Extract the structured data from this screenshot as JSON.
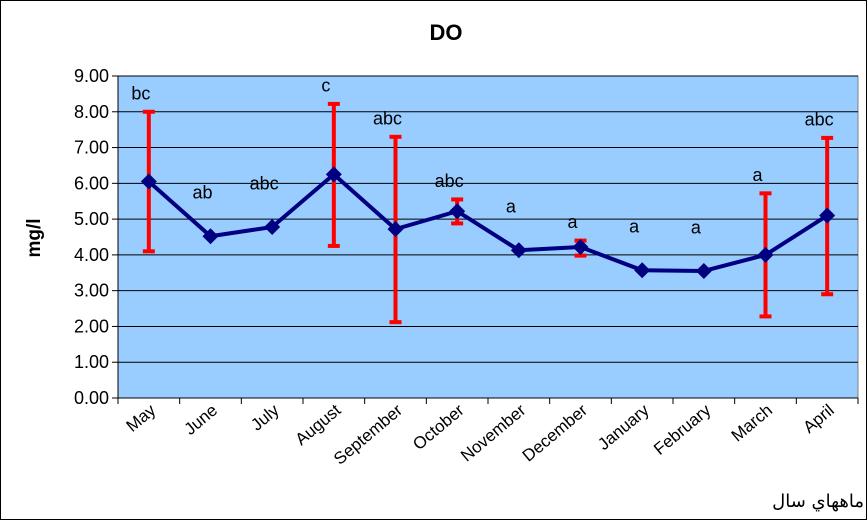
{
  "chart_data": {
    "type": "line",
    "title": "DO",
    "ylabel": "mg/l",
    "xlabel": "ماههاي سال",
    "ylim": [
      0,
      9
    ],
    "yticks": [
      "0.00",
      "1.00",
      "2.00",
      "3.00",
      "4.00",
      "5.00",
      "6.00",
      "7.00",
      "8.00",
      "9.00"
    ],
    "categories": [
      "May",
      "June",
      "July",
      "August",
      "September",
      "October",
      "November",
      "December",
      "January",
      "February",
      "March",
      "April"
    ],
    "series": [
      {
        "values": [
          6.05,
          4.52,
          4.78,
          6.25,
          4.72,
          5.22,
          4.13,
          4.22,
          3.57,
          3.55,
          4.0,
          5.1
        ],
        "error_low": [
          4.1,
          null,
          null,
          4.25,
          2.12,
          4.88,
          null,
          3.98,
          null,
          null,
          2.28,
          2.9
        ],
        "error_high": [
          8.0,
          null,
          null,
          8.22,
          7.3,
          5.55,
          null,
          4.4,
          null,
          null,
          5.72,
          7.27
        ],
        "significance": [
          "bc",
          "ab",
          "abc",
          "c",
          "abc",
          "abc",
          "a",
          "a",
          "a",
          "a",
          "a",
          "abc"
        ]
      }
    ],
    "grid": true,
    "colors": {
      "plot_bg": "#99ccff",
      "line": "#000080",
      "error_bar": "#ff0000"
    }
  }
}
